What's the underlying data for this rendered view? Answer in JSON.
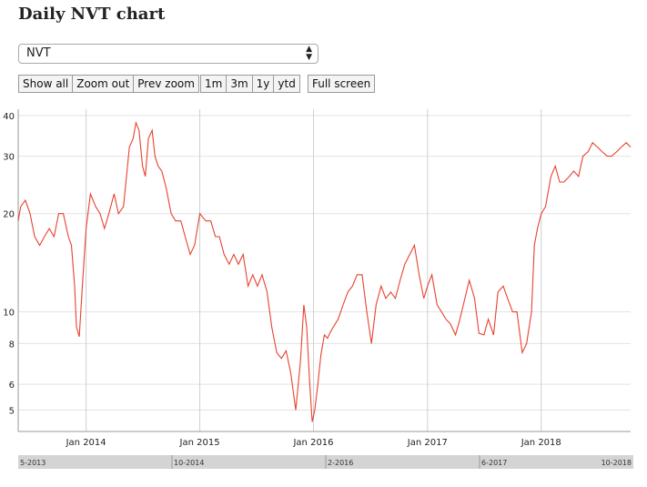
{
  "page": {
    "title": "Daily NVT chart",
    "metric_select": {
      "selected": "NVT"
    },
    "zoom_buttons": [
      "Show all",
      "Zoom out",
      "Prev zoom"
    ],
    "range_buttons": [
      "1m",
      "3m",
      "1y",
      "ytd"
    ],
    "fullscreen_label": "Full screen"
  },
  "chart_data": {
    "type": "line",
    "title": "",
    "xlabel": "",
    "ylabel": "",
    "yscale": "log",
    "ylim": [
      4.3,
      41
    ],
    "xlim": [
      "2013-05-28",
      "2018-10-15"
    ],
    "y_ticks": [
      4,
      5,
      6,
      8,
      10,
      20,
      30,
      40
    ],
    "y_tick_labels": [
      "",
      "5",
      "6",
      "8",
      "10",
      "20",
      "30",
      "40"
    ],
    "x_ticks": [
      "2014-01-01",
      "2015-01-01",
      "2016-01-01",
      "2017-01-01",
      "2018-01-01"
    ],
    "x_tick_labels": [
      "Jan 2014",
      "Jan 2015",
      "Jan 2016",
      "Jan 2017",
      "Jan 2018"
    ],
    "grid": true,
    "legend": "none",
    "line_color": "#e8412f",
    "navigator_labels": [
      "5-2013",
      "10-2014",
      "2-2016",
      "6-2017",
      "10-2018"
    ],
    "series": [
      {
        "x": [
          "2013-05-28",
          "2013-06-05",
          "2013-06-20",
          "2013-07-05",
          "2013-07-20",
          "2013-08-05",
          "2013-08-20",
          "2013-09-05",
          "2013-09-20",
          "2013-10-05",
          "2013-10-20",
          "2013-11-05",
          "2013-11-15",
          "2013-11-25",
          "2013-12-01",
          "2013-12-10",
          "2013-12-20",
          "2014-01-01",
          "2014-01-15",
          "2014-02-01",
          "2014-02-15",
          "2014-03-01",
          "2014-03-15",
          "2014-04-01",
          "2014-04-15",
          "2014-05-01",
          "2014-05-20",
          "2014-06-01",
          "2014-06-10",
          "2014-06-20",
          "2014-07-01",
          "2014-07-10",
          "2014-07-20",
          "2014-08-01",
          "2014-08-10",
          "2014-08-20",
          "2014-09-01",
          "2014-09-15",
          "2014-10-01",
          "2014-10-15",
          "2014-11-01",
          "2014-11-15",
          "2014-12-01",
          "2014-12-15",
          "2015-01-01",
          "2015-01-20",
          "2015-02-05",
          "2015-02-20",
          "2015-03-05",
          "2015-03-20",
          "2015-04-05",
          "2015-04-20",
          "2015-05-05",
          "2015-05-20",
          "2015-06-05",
          "2015-06-20",
          "2015-07-05",
          "2015-07-20",
          "2015-08-05",
          "2015-08-20",
          "2015-09-05",
          "2015-09-20",
          "2015-10-05",
          "2015-10-20",
          "2015-11-05",
          "2015-11-20",
          "2015-12-01",
          "2015-12-10",
          "2015-12-20",
          "2015-12-28",
          "2016-01-05",
          "2016-01-15",
          "2016-01-25",
          "2016-02-05",
          "2016-02-15",
          "2016-02-25",
          "2016-03-05",
          "2016-03-20",
          "2016-04-05",
          "2016-04-20",
          "2016-05-05",
          "2016-05-20",
          "2016-06-05",
          "2016-06-20",
          "2016-07-05",
          "2016-07-20",
          "2016-08-05",
          "2016-08-20",
          "2016-09-05",
          "2016-09-20",
          "2016-10-05",
          "2016-10-20",
          "2016-11-05",
          "2016-11-20",
          "2016-12-05",
          "2016-12-20",
          "2017-01-01",
          "2017-01-15",
          "2017-02-01",
          "2017-02-15",
          "2017-03-01",
          "2017-03-15",
          "2017-04-01",
          "2017-04-15",
          "2017-05-01",
          "2017-05-15",
          "2017-06-01",
          "2017-06-15",
          "2017-07-01",
          "2017-07-15",
          "2017-08-01",
          "2017-08-15",
          "2017-09-01",
          "2017-09-15",
          "2017-10-01",
          "2017-10-15",
          "2017-11-01",
          "2017-11-15",
          "2017-12-01",
          "2017-12-10",
          "2017-12-20",
          "2018-01-01",
          "2018-01-15",
          "2018-02-01",
          "2018-02-15",
          "2018-03-01",
          "2018-03-15",
          "2018-04-01",
          "2018-04-15",
          "2018-05-01",
          "2018-05-15",
          "2018-06-01",
          "2018-06-15",
          "2018-07-01",
          "2018-07-15",
          "2018-08-01",
          "2018-08-15",
          "2018-09-01",
          "2018-09-15",
          "2018-10-01",
          "2018-10-15"
        ],
        "y": [
          19,
          21,
          22,
          20,
          17,
          16,
          17,
          18,
          17,
          20,
          20,
          17,
          16,
          12,
          9,
          8.4,
          12,
          18,
          23,
          21,
          20,
          18,
          20,
          23,
          20,
          21,
          32,
          34,
          38,
          36,
          28,
          26,
          34,
          36,
          30,
          28,
          27,
          24,
          20,
          19,
          19,
          17,
          15,
          16,
          20,
          19,
          19,
          17,
          17,
          15,
          14,
          15,
          14,
          15,
          12,
          13,
          12,
          13,
          11.5,
          9,
          7.5,
          7.2,
          7.6,
          6.5,
          5,
          7,
          10.5,
          9,
          6,
          4.6,
          5,
          6,
          7.4,
          8.5,
          8.3,
          8.7,
          9,
          9.5,
          10.5,
          11.5,
          12,
          13,
          13,
          10,
          8,
          10.5,
          12,
          11,
          11.5,
          11,
          12.5,
          14,
          15,
          16,
          13,
          11,
          12,
          13,
          10.5,
          10,
          9.5,
          9.2,
          8.5,
          9.5,
          11,
          12.5,
          11,
          8.6,
          8.5,
          9.5,
          8.5,
          11.5,
          12,
          11,
          10,
          10,
          7.5,
          8,
          10,
          16,
          18,
          20,
          21,
          26,
          28,
          25,
          25,
          26,
          27,
          26,
          30,
          31,
          33,
          32,
          31,
          30,
          30,
          31,
          32,
          33,
          32
        ]
      }
    ]
  }
}
